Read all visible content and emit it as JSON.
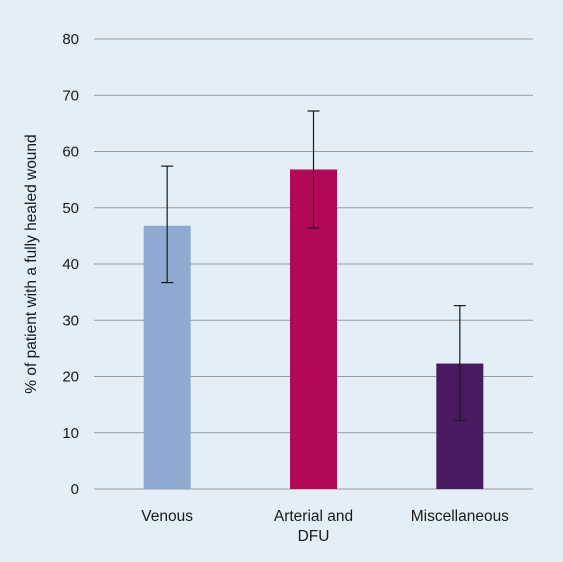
{
  "chart_data": {
    "type": "bar",
    "categories": [
      [
        "Venous"
      ],
      [
        "Arterial and",
        "DFU"
      ],
      [
        "Miscellaneous"
      ]
    ],
    "series": [
      {
        "values": [
          46.8,
          56.8,
          22.3
        ],
        "error_low": [
          36.7,
          46.4,
          12.2
        ],
        "error_high": [
          57.4,
          67.2,
          32.6
        ],
        "colors": [
          "#8eaad3",
          "#b30758",
          "#4a1a60"
        ]
      }
    ],
    "xlabel": "",
    "ylabel": "% of patient with a fully healed wound",
    "ylim": [
      0,
      80
    ],
    "yticks": [
      0,
      10,
      20,
      30,
      40,
      50,
      60,
      70,
      80
    ],
    "grid": true,
    "legend": "none"
  },
  "colors": {
    "background": "#e3eef6",
    "gridline": "#9a9a9a",
    "error_bar": "#1a1a1a"
  }
}
